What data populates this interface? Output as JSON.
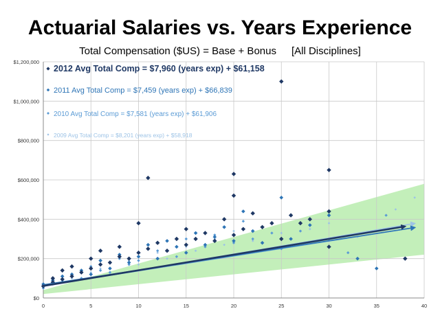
{
  "chart_data": {
    "type": "scatter",
    "title": "Actuarial Salaries vs. Years Experience",
    "subtitle_left": "Total Compensation ($US) = Base + Bonus",
    "subtitle_right": "[All Disciplines]",
    "xlim": [
      0,
      40
    ],
    "ylim": [
      0,
      1200000
    ],
    "x_ticks": [
      0,
      5,
      10,
      15,
      20,
      25,
      30,
      35,
      40
    ],
    "x_tick_labels": [
      "0",
      "5",
      "10",
      "15",
      "20",
      "25",
      "30",
      "35",
      "40"
    ],
    "y_ticks": [
      0,
      200000,
      400000,
      600000,
      800000,
      1000000,
      1200000
    ],
    "y_tick_labels": [
      "$0",
      "$200,000",
      "$400,000",
      "$600,000",
      "$800,000",
      "$1,000,000",
      "$1,200,000"
    ],
    "grid": true,
    "legend_position": "top-left",
    "series": [
      {
        "name": "2012 Avg Total Comp = $7,960 (years exp) + $61,158",
        "year": 2012,
        "slope": 7960,
        "intercept": 61158,
        "color": "#1f3864",
        "marker_size": 3.2,
        "x": [
          0,
          1,
          1,
          2,
          2,
          3,
          3,
          4,
          5,
          5,
          6,
          6,
          7,
          8,
          8,
          9,
          10,
          10,
          11,
          11,
          12,
          13,
          14,
          15,
          15,
          16,
          17,
          18,
          19,
          20,
          20,
          20,
          21,
          22,
          23,
          24,
          25,
          25,
          26,
          27,
          28,
          30,
          30,
          30,
          38
        ],
        "y": [
          60000,
          80000,
          100000,
          95000,
          140000,
          110000,
          160000,
          130000,
          150000,
          200000,
          170000,
          240000,
          180000,
          210000,
          260000,
          200000,
          230000,
          380000,
          610000,
          250000,
          280000,
          240000,
          300000,
          270000,
          350000,
          300000,
          330000,
          290000,
          400000,
          320000,
          520000,
          630000,
          350000,
          430000,
          360000,
          380000,
          1100000,
          300000,
          420000,
          380000,
          400000,
          650000,
          260000,
          440000,
          200000
        ]
      },
      {
        "name": "2011 Avg Total Comp = $7,459 (years exp) + $66,839",
        "year": 2011,
        "slope": 7459,
        "intercept": 66839,
        "color": "#2e75b6",
        "marker_size": 2.8,
        "x": [
          0,
          1,
          2,
          3,
          4,
          5,
          6,
          7,
          8,
          9,
          10,
          11,
          12,
          13,
          14,
          15,
          16,
          17,
          18,
          19,
          20,
          21,
          22,
          23,
          25,
          26,
          28,
          30,
          33,
          35
        ],
        "y": [
          70000,
          90000,
          110000,
          120000,
          140000,
          120000,
          190000,
          150000,
          220000,
          180000,
          210000,
          270000,
          200000,
          290000,
          260000,
          230000,
          330000,
          270000,
          310000,
          360000,
          290000,
          440000,
          340000,
          280000,
          510000,
          300000,
          370000,
          420000,
          200000,
          150000
        ]
      },
      {
        "name": "2010 Avg Total Comp = $7,581 (years exp) + $61,906",
        "year": 2010,
        "slope": 7581,
        "intercept": 61906,
        "color": "#5b9bd5",
        "marker_size": 2.2,
        "x": [
          0,
          1,
          2,
          3,
          4,
          5,
          6,
          7,
          8,
          9,
          10,
          12,
          14,
          15,
          17,
          18,
          20,
          21,
          22,
          24,
          25,
          27,
          30,
          32,
          36
        ],
        "y": [
          50000,
          70000,
          90000,
          120000,
          100000,
          160000,
          140000,
          130000,
          200000,
          170000,
          190000,
          240000,
          210000,
          300000,
          260000,
          320000,
          280000,
          390000,
          300000,
          330000,
          250000,
          340000,
          300000,
          230000,
          420000
        ]
      },
      {
        "name": "2009 Avg Total Comp = $8,201 (years exp) + $58,918",
        "year": 2009,
        "slope": 8201,
        "intercept": 58918,
        "color": "#9dc3e6",
        "marker_size": 1.8,
        "x": [
          0,
          1,
          2,
          3,
          5,
          6,
          7,
          9,
          10,
          12,
          13,
          15,
          16,
          18,
          19,
          20,
          22,
          23,
          25,
          26,
          28,
          30,
          33,
          37,
          39
        ],
        "y": [
          55000,
          75000,
          85000,
          100000,
          130000,
          150000,
          120000,
          190000,
          170000,
          230000,
          200000,
          260000,
          240000,
          300000,
          270000,
          340000,
          290000,
          360000,
          330000,
          270000,
          350000,
          380000,
          310000,
          450000,
          510000
        ]
      }
    ]
  }
}
